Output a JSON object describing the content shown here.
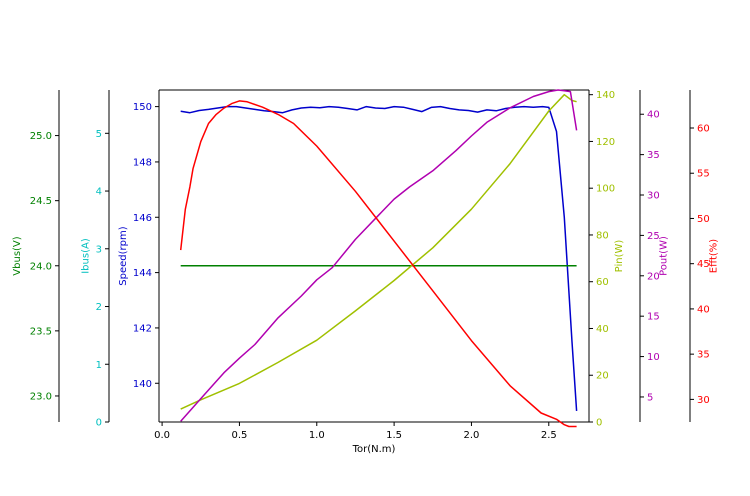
{
  "chart_data": {
    "type": "line",
    "xlabel": "Tor(N.m)",
    "xlim": [
      -0.02,
      2.76
    ],
    "xticks": [
      0.0,
      0.5,
      1.0,
      1.5,
      2.0,
      2.5
    ],
    "xtick_labels": [
      "0.0",
      "0.5",
      "1.0",
      "1.5",
      "2.0",
      "2.5"
    ],
    "grid": false,
    "axes": [
      {
        "id": "vbus",
        "label": "Vbus(V)",
        "color": "#008000",
        "side": "left",
        "ylim": [
          22.8,
          25.35
        ],
        "ticks": [
          23.0,
          23.5,
          24.0,
          24.5,
          25.0
        ],
        "tick_labels": [
          "23.0",
          "23.5",
          "24.0",
          "24.5",
          "25.0"
        ]
      },
      {
        "id": "ibus",
        "label": "Ibus(A)",
        "color": "#00bfbf",
        "side": "left",
        "ylim": [
          0,
          5.75
        ],
        "ticks": [
          0,
          1,
          2,
          3,
          4,
          5
        ],
        "tick_labels": [
          "0",
          "1",
          "2",
          "3",
          "4",
          "5"
        ]
      },
      {
        "id": "speed",
        "label": "Speed(rpm)",
        "color": "#0000cc",
        "side": "left",
        "ylim": [
          138.6,
          150.6
        ],
        "ticks": [
          140,
          142,
          144,
          146,
          148,
          150
        ],
        "tick_labels": [
          "140",
          "142",
          "144",
          "146",
          "148",
          "150"
        ]
      },
      {
        "id": "pin",
        "label": "Pin(W)",
        "color": "#a0c000",
        "side": "right",
        "ylim": [
          0,
          142
        ],
        "ticks": [
          0,
          20,
          40,
          60,
          80,
          100,
          120,
          140
        ],
        "tick_labels": [
          "0",
          "20",
          "40",
          "60",
          "80",
          "100",
          "120",
          "140"
        ]
      },
      {
        "id": "pout",
        "label": "Pout(W)",
        "color": "#b000b0",
        "side": "right",
        "ylim": [
          1.9,
          43
        ],
        "ticks": [
          5,
          10,
          15,
          20,
          25,
          30,
          35,
          40
        ],
        "tick_labels": [
          "5",
          "10",
          "15",
          "20",
          "25",
          "30",
          "35",
          "40"
        ]
      },
      {
        "id": "efft",
        "label": "Efft(%)",
        "color": "#ff0000",
        "side": "right",
        "ylim": [
          27.5,
          64.2
        ],
        "ticks": [
          30,
          35,
          40,
          45,
          50,
          55,
          60
        ],
        "tick_labels": [
          "30",
          "35",
          "40",
          "45",
          "50",
          "55",
          "60"
        ]
      }
    ],
    "series": [
      {
        "axis": "speed",
        "color": "#0000cc",
        "x": [
          0.12,
          0.18,
          0.24,
          0.3,
          0.36,
          0.42,
          0.48,
          0.54,
          0.6,
          0.66,
          0.72,
          0.78,
          0.84,
          0.9,
          0.96,
          1.02,
          1.08,
          1.14,
          1.2,
          1.26,
          1.32,
          1.38,
          1.44,
          1.5,
          1.56,
          1.62,
          1.68,
          1.74,
          1.8,
          1.86,
          1.92,
          1.98,
          2.04,
          2.1,
          2.16,
          2.22,
          2.28,
          2.34,
          2.4,
          2.46,
          2.5,
          2.55,
          2.6,
          2.65,
          2.68
        ],
        "y": [
          149.83,
          149.78,
          149.86,
          149.9,
          149.95,
          150.0,
          150.0,
          149.95,
          149.9,
          149.85,
          149.82,
          149.78,
          149.88,
          149.95,
          149.98,
          149.96,
          150.0,
          149.98,
          149.93,
          149.88,
          150.0,
          149.95,
          149.93,
          150.0,
          149.98,
          149.9,
          149.82,
          149.97,
          150.0,
          149.93,
          149.88,
          149.86,
          149.8,
          149.88,
          149.85,
          149.93,
          149.98,
          150.0,
          149.98,
          150.0,
          149.97,
          149.1,
          146.0,
          141.5,
          139.0
        ]
      },
      {
        "axis": "vbus",
        "color": "#008000",
        "x": [
          0.12,
          2.68
        ],
        "y": [
          24.0,
          24.0
        ]
      },
      {
        "axis": "pin",
        "color": "#a0c000",
        "x": [
          0.12,
          0.25,
          0.5,
          0.75,
          1.0,
          1.25,
          1.5,
          1.75,
          2.0,
          2.25,
          2.5,
          2.6,
          2.65,
          2.68
        ],
        "y": [
          5.5,
          9.5,
          16.5,
          25.5,
          35.0,
          47.5,
          60.5,
          74.5,
          91.0,
          110.5,
          133.0,
          140.0,
          137.5,
          137.0
        ]
      },
      {
        "axis": "pout",
        "color": "#b000b0",
        "x": [
          0.12,
          0.25,
          0.4,
          0.5,
          0.6,
          0.75,
          0.9,
          1.0,
          1.1,
          1.25,
          1.4,
          1.5,
          1.6,
          1.75,
          1.9,
          2.0,
          2.1,
          2.25,
          2.4,
          2.5,
          2.56,
          2.6,
          2.64,
          2.68
        ],
        "y": [
          2.0,
          4.8,
          8.0,
          9.8,
          11.5,
          14.8,
          17.5,
          19.5,
          21.0,
          24.5,
          27.5,
          29.5,
          31.0,
          33.0,
          35.5,
          37.3,
          39.0,
          40.8,
          42.2,
          42.8,
          43.0,
          42.9,
          42.8,
          38.0
        ]
      },
      {
        "axis": "efft",
        "color": "#ff0000",
        "x": [
          0.12,
          0.15,
          0.18,
          0.2,
          0.25,
          0.3,
          0.35,
          0.4,
          0.45,
          0.5,
          0.55,
          0.65,
          0.75,
          0.85,
          1.0,
          1.25,
          1.5,
          1.75,
          2.0,
          2.25,
          2.45,
          2.55,
          2.6,
          2.63,
          2.68
        ],
        "y": [
          46.5,
          51.0,
          53.5,
          55.5,
          58.5,
          60.5,
          61.5,
          62.2,
          62.7,
          63.0,
          62.9,
          62.3,
          61.5,
          60.5,
          58.0,
          53.0,
          47.5,
          42.0,
          36.5,
          31.5,
          28.5,
          27.8,
          27.2,
          27.0,
          27.0
        ]
      }
    ]
  }
}
